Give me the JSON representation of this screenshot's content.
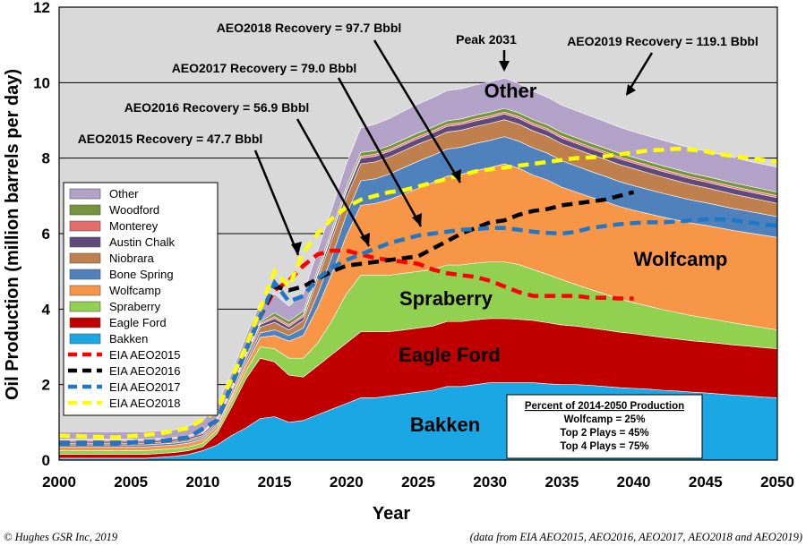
{
  "chart_data": {
    "type": "area",
    "xlabel": "Year",
    "ylabel": "Oil Production (million barrels per day)",
    "xlim": [
      2000,
      2050
    ],
    "ylim": [
      0,
      12
    ],
    "x_ticks": [
      "2000",
      "2005",
      "2010",
      "2015",
      "2020",
      "2025",
      "2030",
      "2035",
      "2040",
      "2045",
      "2050"
    ],
    "y_ticks": [
      "0",
      "2",
      "4",
      "6",
      "8",
      "10",
      "12"
    ],
    "grid": "horizontal",
    "x": [
      2000,
      2003,
      2006,
      2008,
      2009,
      2010,
      2011,
      2012,
      2013,
      2014,
      2015,
      2016,
      2017,
      2018,
      2019,
      2020,
      2021,
      2022,
      2023,
      2024,
      2025,
      2026,
      2027,
      2028,
      2029,
      2030,
      2031,
      2032,
      2033,
      2034,
      2035,
      2036,
      2037,
      2038,
      2039,
      2040,
      2041,
      2042,
      2043,
      2044,
      2045,
      2046,
      2047,
      2048,
      2049,
      2050
    ],
    "stack_series": [
      {
        "name": "Bakken",
        "color": "#1aa7e3",
        "values": [
          0.05,
          0.05,
          0.05,
          0.1,
          0.15,
          0.25,
          0.4,
          0.65,
          0.85,
          1.1,
          1.15,
          1.0,
          1.05,
          1.2,
          1.35,
          1.5,
          1.65,
          1.65,
          1.7,
          1.75,
          1.8,
          1.85,
          1.95,
          1.95,
          2.0,
          2.05,
          2.05,
          2.05,
          2.05,
          2.02,
          2.0,
          2.0,
          1.98,
          1.95,
          1.92,
          1.9,
          1.88,
          1.85,
          1.83,
          1.8,
          1.78,
          1.75,
          1.72,
          1.7,
          1.67,
          1.65
        ]
      },
      {
        "name": "Eagle Ford",
        "color": "#c00000",
        "values": [
          0.1,
          0.1,
          0.1,
          0.1,
          0.1,
          0.1,
          0.3,
          0.75,
          1.3,
          1.6,
          1.45,
          1.25,
          1.15,
          1.3,
          1.45,
          1.6,
          1.75,
          1.75,
          1.7,
          1.7,
          1.7,
          1.7,
          1.72,
          1.72,
          1.72,
          1.7,
          1.7,
          1.68,
          1.65,
          1.62,
          1.58,
          1.55,
          1.52,
          1.5,
          1.47,
          1.45,
          1.42,
          1.4,
          1.38,
          1.36,
          1.35,
          1.34,
          1.33,
          1.32,
          1.31,
          1.3
        ]
      },
      {
        "name": "Spraberry",
        "color": "#92d050",
        "values": [
          0.1,
          0.1,
          0.1,
          0.1,
          0.1,
          0.1,
          0.1,
          0.15,
          0.2,
          0.3,
          0.35,
          0.45,
          0.5,
          0.6,
          0.9,
          1.3,
          1.5,
          1.5,
          1.5,
          1.5,
          1.5,
          1.5,
          1.5,
          1.5,
          1.5,
          1.5,
          1.5,
          1.45,
          1.35,
          1.28,
          1.2,
          1.1,
          1.02,
          0.95,
          0.88,
          0.82,
          0.78,
          0.74,
          0.7,
          0.67,
          0.64,
          0.61,
          0.58,
          0.55,
          0.53,
          0.5
        ]
      },
      {
        "name": "Wolfcamp",
        "color": "#f79646",
        "values": [
          0.1,
          0.1,
          0.1,
          0.1,
          0.1,
          0.1,
          0.1,
          0.1,
          0.15,
          0.25,
          0.35,
          0.45,
          0.6,
          0.95,
          1.25,
          1.55,
          1.85,
          1.9,
          2.0,
          2.1,
          2.2,
          2.3,
          2.35,
          2.4,
          2.45,
          2.5,
          2.6,
          2.55,
          2.5,
          2.5,
          2.45,
          2.45,
          2.45,
          2.45,
          2.45,
          2.45,
          2.45,
          2.45,
          2.45,
          2.45,
          2.45,
          2.45,
          2.45,
          2.45,
          2.45,
          2.45
        ]
      },
      {
        "name": "Bone Spring",
        "color": "#4f81bd",
        "values": [
          0.05,
          0.05,
          0.05,
          0.05,
          0.05,
          0.05,
          0.05,
          0.05,
          0.08,
          0.12,
          0.15,
          0.15,
          0.2,
          0.35,
          0.45,
          0.55,
          0.65,
          0.65,
          0.68,
          0.7,
          0.72,
          0.72,
          0.72,
          0.72,
          0.72,
          0.72,
          0.72,
          0.72,
          0.72,
          0.71,
          0.7,
          0.69,
          0.68,
          0.67,
          0.66,
          0.65,
          0.64,
          0.63,
          0.62,
          0.61,
          0.6,
          0.59,
          0.58,
          0.57,
          0.56,
          0.55
        ]
      },
      {
        "name": "Niobrara",
        "color": "#c0804d",
        "values": [
          0.05,
          0.05,
          0.05,
          0.05,
          0.05,
          0.05,
          0.07,
          0.1,
          0.12,
          0.15,
          0.2,
          0.15,
          0.2,
          0.4,
          0.45,
          0.45,
          0.45,
          0.45,
          0.45,
          0.45,
          0.45,
          0.45,
          0.45,
          0.45,
          0.45,
          0.45,
          0.45,
          0.45,
          0.45,
          0.45,
          0.45,
          0.45,
          0.45,
          0.45,
          0.45,
          0.45,
          0.44,
          0.43,
          0.42,
          0.41,
          0.4,
          0.39,
          0.38,
          0.37,
          0.36,
          0.35
        ]
      },
      {
        "name": "Austin Chalk",
        "color": "#604a7b",
        "values": [
          0.05,
          0.05,
          0.05,
          0.05,
          0.05,
          0.05,
          0.05,
          0.05,
          0.06,
          0.07,
          0.1,
          0.08,
          0.1,
          0.1,
          0.12,
          0.15,
          0.15,
          0.15,
          0.15,
          0.15,
          0.15,
          0.15,
          0.15,
          0.15,
          0.15,
          0.15,
          0.15,
          0.15,
          0.15,
          0.15,
          0.15,
          0.15,
          0.15,
          0.15,
          0.15,
          0.15,
          0.15,
          0.15,
          0.15,
          0.15,
          0.15,
          0.15,
          0.15,
          0.15,
          0.15,
          0.15
        ]
      },
      {
        "name": "Monterey",
        "color": "#e46c6c",
        "values": [
          0.03,
          0.03,
          0.03,
          0.03,
          0.03,
          0.03,
          0.03,
          0.03,
          0.03,
          0.03,
          0.05,
          0.05,
          0.05,
          0.05,
          0.05,
          0.05,
          0.05,
          0.05,
          0.05,
          0.05,
          0.05,
          0.05,
          0.05,
          0.05,
          0.05,
          0.05,
          0.05,
          0.05,
          0.05,
          0.05,
          0.05,
          0.05,
          0.05,
          0.05,
          0.05,
          0.05,
          0.05,
          0.05,
          0.05,
          0.05,
          0.05,
          0.05,
          0.05,
          0.05,
          0.05,
          0.05
        ]
      },
      {
        "name": "Woodford",
        "color": "#77933c",
        "values": [
          0.02,
          0.02,
          0.02,
          0.02,
          0.02,
          0.02,
          0.02,
          0.02,
          0.03,
          0.04,
          0.1,
          0.1,
          0.1,
          0.1,
          0.1,
          0.1,
          0.1,
          0.1,
          0.1,
          0.1,
          0.1,
          0.1,
          0.1,
          0.1,
          0.1,
          0.1,
          0.1,
          0.1,
          0.1,
          0.1,
          0.1,
          0.1,
          0.1,
          0.1,
          0.1,
          0.1,
          0.1,
          0.1,
          0.1,
          0.1,
          0.1,
          0.1,
          0.1,
          0.1,
          0.1,
          0.1
        ]
      },
      {
        "name": "Other",
        "color": "#b3a2c7",
        "values": [
          0.2,
          0.2,
          0.2,
          0.2,
          0.25,
          0.3,
          0.35,
          0.4,
          0.45,
          0.5,
          0.5,
          0.4,
          0.45,
          0.5,
          0.55,
          0.6,
          0.65,
          0.7,
          0.72,
          0.75,
          0.77,
          0.78,
          0.8,
          0.8,
          0.8,
          0.8,
          0.8,
          0.78,
          0.75,
          0.73,
          0.72,
          0.72,
          0.71,
          0.7,
          0.69,
          0.68,
          0.68,
          0.68,
          0.67,
          0.67,
          0.67,
          0.67,
          0.67,
          0.66,
          0.66,
          0.66
        ]
      }
    ],
    "line_series": [
      {
        "name": "EIA AEO2015",
        "color": "#ff0000",
        "x": [
          2000,
          2004,
          2007,
          2009,
          2011,
          2013,
          2014,
          2015,
          2016,
          2017,
          2018,
          2019,
          2020,
          2021,
          2022,
          2023,
          2024,
          2025,
          2026,
          2027,
          2028,
          2029,
          2030,
          2031,
          2032,
          2033,
          2034,
          2035,
          2036,
          2037,
          2038,
          2039,
          2040
        ],
        "values": [
          0.45,
          0.45,
          0.5,
          0.6,
          1.05,
          2.9,
          3.8,
          4.5,
          4.75,
          5.15,
          5.45,
          5.55,
          5.55,
          5.45,
          5.35,
          5.3,
          5.25,
          5.2,
          5.05,
          4.95,
          4.9,
          4.85,
          4.75,
          4.6,
          4.45,
          4.35,
          4.35,
          4.35,
          4.35,
          4.3,
          4.3,
          4.28,
          4.28
        ]
      },
      {
        "name": "EIA AEO2016",
        "color": "#000000",
        "x": [
          2000,
          2004,
          2007,
          2009,
          2011,
          2013,
          2014,
          2015,
          2016,
          2017,
          2018,
          2019,
          2020,
          2021,
          2022,
          2023,
          2024,
          2025,
          2026,
          2027,
          2028,
          2029,
          2030,
          2031,
          2032,
          2033,
          2034,
          2035,
          2036,
          2037,
          2038,
          2039,
          2040
        ],
        "values": [
          0.45,
          0.45,
          0.5,
          0.6,
          1.05,
          2.9,
          3.8,
          4.6,
          4.5,
          4.6,
          4.8,
          5.0,
          5.15,
          5.2,
          5.25,
          5.3,
          5.35,
          5.4,
          5.6,
          5.8,
          6.0,
          6.15,
          6.3,
          6.35,
          6.5,
          6.6,
          6.65,
          6.75,
          6.8,
          6.85,
          6.9,
          7.0,
          7.1
        ]
      },
      {
        "name": "EIA AEO2017",
        "color": "#1f77c7",
        "x": [
          2000,
          2004,
          2007,
          2009,
          2011,
          2013,
          2014,
          2015,
          2016,
          2017,
          2018,
          2019,
          2020,
          2021,
          2022,
          2023,
          2024,
          2025,
          2026,
          2027,
          2028,
          2029,
          2030,
          2031,
          2032,
          2033,
          2034,
          2035,
          2036,
          2037,
          2038,
          2039,
          2040,
          2041,
          2042,
          2043,
          2044,
          2045,
          2046,
          2047,
          2048,
          2049,
          2050
        ],
        "values": [
          0.45,
          0.45,
          0.5,
          0.6,
          1.05,
          2.9,
          3.8,
          4.7,
          4.2,
          4.35,
          4.8,
          5.1,
          5.3,
          5.45,
          5.6,
          5.75,
          5.85,
          5.95,
          6.0,
          6.05,
          6.1,
          6.12,
          6.15,
          6.15,
          6.1,
          6.05,
          6.02,
          6.0,
          6.05,
          6.15,
          6.2,
          6.25,
          6.28,
          6.3,
          6.3,
          6.32,
          6.35,
          6.38,
          6.38,
          6.35,
          6.3,
          6.25,
          6.2
        ]
      },
      {
        "name": "EIA AEO2018",
        "color": "#ffff00",
        "x": [
          2000,
          2004,
          2007,
          2009,
          2011,
          2013,
          2014,
          2015,
          2016,
          2017,
          2018,
          2019,
          2020,
          2021,
          2022,
          2023,
          2024,
          2025,
          2026,
          2027,
          2028,
          2029,
          2030,
          2031,
          2032,
          2033,
          2034,
          2035,
          2036,
          2037,
          2038,
          2039,
          2040,
          2041,
          2042,
          2043,
          2044,
          2045,
          2046,
          2047,
          2048,
          2049,
          2050
        ],
        "values": [
          0.65,
          0.6,
          0.7,
          0.85,
          1.3,
          3.0,
          4.0,
          5.0,
          4.6,
          5.5,
          6.0,
          6.4,
          6.7,
          6.9,
          7.0,
          7.1,
          7.15,
          7.25,
          7.35,
          7.45,
          7.55,
          7.65,
          7.7,
          7.75,
          7.8,
          7.85,
          7.9,
          7.95,
          8.0,
          8.02,
          8.05,
          8.1,
          8.15,
          8.2,
          8.22,
          8.25,
          8.22,
          8.18,
          8.1,
          8.05,
          8.0,
          7.95,
          7.9
        ]
      }
    ],
    "legend": [
      "Other",
      "Woodford",
      "Monterey",
      "Austin Chalk",
      "Niobrara",
      "Bone Spring",
      "Wolfcamp",
      "Spraberry",
      "Eagle Ford",
      "Bakken",
      "EIA AEO2015",
      "EIA AEO2016",
      "EIA AEO2017",
      "EIA AEO2018"
    ],
    "legend_position": "left",
    "region_labels": {
      "other": "Other",
      "wolfcamp": "Wolfcamp",
      "spraberry": "Spraberry",
      "eagle_ford": "Eagle Ford",
      "bakken": "Bakken"
    },
    "annotations": {
      "aeo2018": "AEO2018 Recovery = 97.7 Bbbl",
      "aeo2017": "AEO2017 Recovery = 79.0 Bbbl",
      "aeo2016": "AEO2016 Recovery = 56.9 Bbbl",
      "aeo2015": "AEO2015 Recovery = 47.7 Bbbl",
      "peak": "Peak 2031",
      "aeo2019": "AEO2019 Recovery = 119.1 Bbbl"
    },
    "info_box": {
      "title": "Percent of 2014-2050 Production",
      "lines": [
        "Wolfcamp = 25%",
        "Top 2 Plays = 45%",
        "Top 4 Plays = 75%"
      ]
    }
  },
  "footer": {
    "copyright": "©  Hughes GSR Inc, 2019",
    "source": "(data from EIA AEO2015, AEO2016, AEO2017, AEO2018 and AEO2019)"
  }
}
